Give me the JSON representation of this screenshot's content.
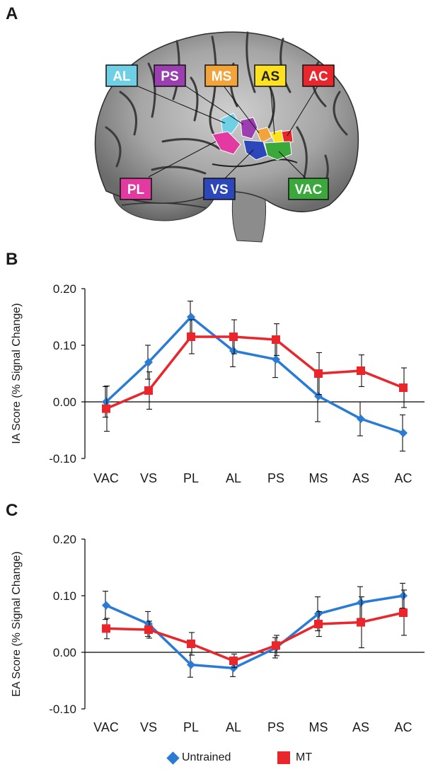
{
  "panel_letters": {
    "a": "A",
    "b": "B",
    "c": "C"
  },
  "colors": {
    "untrained": "#2a7bd6",
    "mt": "#e8262c"
  },
  "brain_regions": [
    {
      "label": "AL",
      "color": "#6fd0e5"
    },
    {
      "label": "PS",
      "color": "#9b3fb0"
    },
    {
      "label": "MS",
      "color": "#f2a33a"
    },
    {
      "label": "AS",
      "color": "#ffe21f"
    },
    {
      "label": "AC",
      "color": "#e8262c"
    },
    {
      "label": "PL",
      "color": "#e23aa1"
    },
    {
      "label": "VS",
      "color": "#2b47b9"
    },
    {
      "label": "VAC",
      "color": "#3aa83a"
    }
  ],
  "legend": [
    {
      "name": "Untrained",
      "marker": "diamond",
      "color": "#2a7bd6"
    },
    {
      "name": "MT",
      "marker": "square",
      "color": "#e8262c"
    }
  ],
  "chart_data": [
    {
      "type": "line",
      "panel": "B",
      "ylabel": "IA Score (% Signal Change)",
      "categories": [
        "VAC",
        "VS",
        "PL",
        "AL",
        "PS",
        "MS",
        "AS",
        "AC"
      ],
      "ylim": [
        -0.1,
        0.2
      ],
      "yticks": [
        "0.20",
        "0.10",
        "0.00",
        "-0.10"
      ],
      "series": [
        {
          "name": "Untrained",
          "values": [
            0.0,
            0.07,
            0.15,
            0.09,
            0.075,
            0.01,
            -0.03,
            -0.055
          ],
          "errors": [
            0.027,
            0.03,
            0.028,
            0.028,
            0.032,
            0.045,
            0.03,
            0.032
          ]
        },
        {
          "name": "MT",
          "values": [
            -0.012,
            0.02,
            0.115,
            0.115,
            0.11,
            0.05,
            0.055,
            0.025
          ],
          "errors": [
            0.04,
            0.033,
            0.03,
            0.03,
            0.028,
            0.037,
            0.028,
            0.035
          ]
        }
      ]
    },
    {
      "type": "line",
      "panel": "C",
      "ylabel": "EA Score (% Signal Change)",
      "categories": [
        "VAC",
        "VS",
        "PL",
        "AL",
        "PS",
        "MS",
        "AS",
        "AC"
      ],
      "ylim": [
        -0.1,
        0.2
      ],
      "yticks": [
        "0.20",
        "0.10",
        "0.00",
        "-0.10"
      ],
      "series": [
        {
          "name": "Untrained",
          "values": [
            0.083,
            0.05,
            -0.022,
            -0.028,
            0.008,
            0.068,
            0.088,
            0.1
          ],
          "errors": [
            0.025,
            0.022,
            0.022,
            0.015,
            0.018,
            0.03,
            0.028,
            0.022
          ]
        },
        {
          "name": "MT",
          "values": [
            0.042,
            0.04,
            0.015,
            -0.015,
            0.012,
            0.05,
            0.053,
            0.07
          ],
          "errors": [
            0.018,
            0.015,
            0.02,
            0.012,
            0.018,
            0.022,
            0.045,
            0.04
          ]
        }
      ]
    }
  ]
}
